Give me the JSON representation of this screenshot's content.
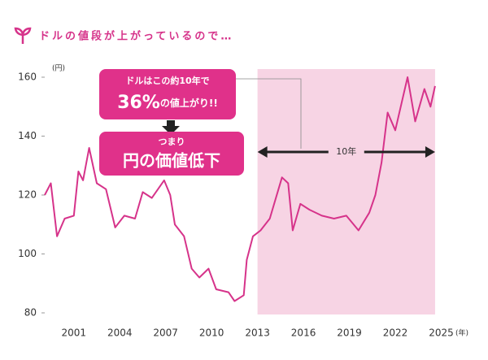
{
  "chart_data": {
    "type": "line",
    "title": "ドルの値段が上がっているので…",
    "y_unit": "(円)",
    "x_unit": "(年)",
    "x": [
      1999.1,
      1999.5,
      1999.9,
      2000.4,
      2001.0,
      2001.3,
      2001.6,
      2002.0,
      2002.5,
      2003.1,
      2003.7,
      2004.3,
      2005.0,
      2005.5,
      2006.1,
      2006.9,
      2007.3,
      2007.6,
      2008.2,
      2008.7,
      2009.2,
      2009.8,
      2010.3,
      2011.1,
      2011.5,
      2012.1,
      2012.3,
      2012.7,
      2013.2,
      2013.8,
      2014.6,
      2015.0,
      2015.3,
      2015.8,
      2016.4,
      2017.2,
      2018.0,
      2018.8,
      2019.6,
      2020.3,
      2020.7,
      2021.1,
      2021.5,
      2022.0,
      2022.8,
      2023.3,
      2023.9,
      2024.3,
      2024.6
    ],
    "values": [
      120,
      124,
      106,
      112,
      113,
      128,
      125,
      136,
      124,
      122,
      109,
      113,
      112,
      121,
      119,
      125,
      120,
      110,
      106,
      95,
      92,
      95,
      88,
      87,
      84,
      86,
      98,
      106,
      108,
      112,
      126,
      124,
      108,
      117,
      115,
      113,
      112,
      113,
      108,
      114,
      120,
      131,
      148,
      142,
      160,
      145,
      156,
      150,
      157
    ],
    "color": "#d6338a",
    "xlim": [
      1999.1,
      2025.4
    ],
    "xticks": [
      2001,
      2004,
      2007,
      2010,
      2013,
      2016,
      2019,
      2022,
      2025
    ],
    "ylim": [
      80,
      160
    ],
    "yticks": [
      80,
      100,
      120,
      140,
      160
    ],
    "grid": false,
    "highlight_range": [
      2013.0,
      2024.6
    ],
    "highlight_color": "#f7d4e4",
    "annotations": {
      "box1_line1": "ドルはこの約10年で",
      "box1_big": "36%",
      "box1_rest": "の値上がり!!",
      "box2_line1": "つまり",
      "box2_line2": "円の価値低下",
      "arrow_label": "10年"
    }
  }
}
